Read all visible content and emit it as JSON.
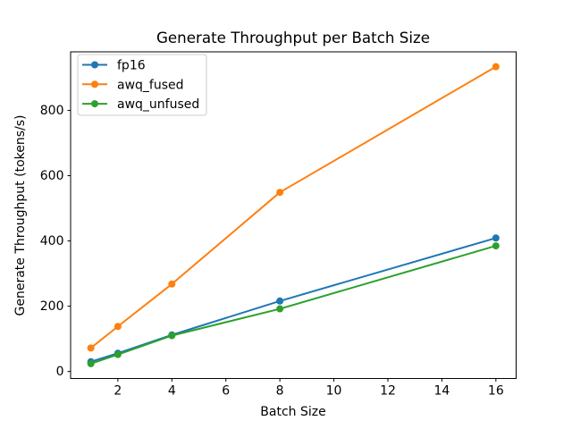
{
  "chart_data": {
    "type": "line",
    "title": "Generate Throughput per Batch Size",
    "xlabel": "Batch Size",
    "ylabel": "Generate Throughput (tokens/s)",
    "x": [
      1,
      2,
      4,
      8,
      16
    ],
    "series": [
      {
        "name": "fp16",
        "color": "#1f77b4",
        "values": [
          30,
          56,
          112,
          216,
          409
        ]
      },
      {
        "name": "awq_fused",
        "color": "#ff7f0e",
        "values": [
          72,
          138,
          268,
          549,
          934
        ]
      },
      {
        "name": "awq_unfused",
        "color": "#2ca02c",
        "values": [
          24,
          52,
          110,
          192,
          385
        ]
      }
    ],
    "xticks": [
      2,
      4,
      6,
      8,
      10,
      12,
      14,
      16
    ],
    "yticks": [
      0,
      200,
      400,
      600,
      800
    ],
    "xlim": [
      0.25,
      16.75
    ],
    "ylim": [
      -21.5,
      979.5
    ],
    "grid": false,
    "legend_position": "upper left",
    "marker": "circle",
    "background": "#ffffff",
    "spine_color": "#000000",
    "legend_border_color": "#cccccc"
  }
}
